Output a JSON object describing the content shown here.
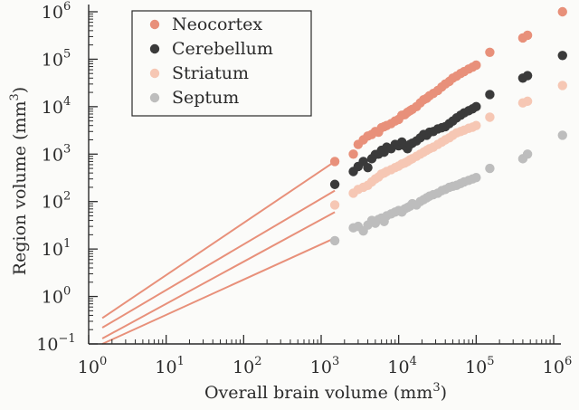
{
  "chart_data": {
    "type": "scatter",
    "xlabel": "Overall brain volume (mm",
    "xlabel_sup": "3",
    "xlabel_end": ")",
    "ylabel": "Region volume (mm",
    "ylabel_sup": "3",
    "ylabel_end": ")",
    "x_scale": "log",
    "y_scale": "log",
    "xlim": [
      1,
      1000000
    ],
    "ylim": [
      0.1,
      1000000
    ],
    "x_ticks": [
      {
        "base": "10",
        "exp": "0",
        "value": 1
      },
      {
        "base": "10",
        "exp": "1",
        "value": 10
      },
      {
        "base": "10",
        "exp": "2",
        "value": 100
      },
      {
        "base": "10",
        "exp": "3",
        "value": 1000
      },
      {
        "base": "10",
        "exp": "4",
        "value": 10000
      },
      {
        "base": "10",
        "exp": "5",
        "value": 100000
      },
      {
        "base": "10",
        "exp": "6",
        "value": 1000000
      }
    ],
    "y_ticks": [
      {
        "base": "10",
        "exp": "−1",
        "value": 0.1
      },
      {
        "base": "10",
        "exp": "0",
        "value": 1
      },
      {
        "base": "10",
        "exp": "1",
        "value": 10
      },
      {
        "base": "10",
        "exp": "2",
        "value": 100
      },
      {
        "base": "10",
        "exp": "3",
        "value": 1000
      },
      {
        "base": "10",
        "exp": "4",
        "value": 10000
      },
      {
        "base": "10",
        "exp": "5",
        "value": 100000
      },
      {
        "base": "10",
        "exp": "6",
        "value": 1000000
      }
    ],
    "grid": false,
    "legend_position": "top-left",
    "fit_x_range": [
      1.5,
      1500
    ],
    "series": [
      {
        "name": "Neocortex",
        "color": "#e8907a",
        "fit_color": "#e8907a",
        "points": [
          [
            1500,
            700
          ],
          [
            2600,
            1000
          ],
          [
            3000,
            1600
          ],
          [
            3500,
            2000
          ],
          [
            4000,
            2400
          ],
          [
            4500,
            2600
          ],
          [
            5000,
            3000
          ],
          [
            5500,
            2900
          ],
          [
            6000,
            3600
          ],
          [
            6500,
            3800
          ],
          [
            7000,
            4000
          ],
          [
            8000,
            4400
          ],
          [
            9000,
            5000
          ],
          [
            10000,
            5400
          ],
          [
            11000,
            6600
          ],
          [
            12000,
            6800
          ],
          [
            13000,
            7600
          ],
          [
            14000,
            8200
          ],
          [
            15000,
            8800
          ],
          [
            17000,
            10000
          ],
          [
            19000,
            12000
          ],
          [
            21000,
            14000
          ],
          [
            23000,
            15000
          ],
          [
            25000,
            17000
          ],
          [
            28000,
            19000
          ],
          [
            32000,
            22000
          ],
          [
            36000,
            26000
          ],
          [
            40000,
            30000
          ],
          [
            45000,
            34000
          ],
          [
            50000,
            40000
          ],
          [
            56000,
            44000
          ],
          [
            63000,
            50000
          ],
          [
            70000,
            55000
          ],
          [
            80000,
            62000
          ],
          [
            90000,
            68000
          ],
          [
            100000,
            75000
          ],
          [
            150000,
            140000
          ],
          [
            400000,
            280000
          ],
          [
            460000,
            320000
          ],
          [
            1300000,
            1000000
          ]
        ]
      },
      {
        "name": "Cerebellum",
        "color": "#3a3a3a",
        "fit_color": "#e8907a",
        "points": [
          [
            1500,
            230
          ],
          [
            2600,
            430
          ],
          [
            3000,
            550
          ],
          [
            3500,
            700
          ],
          [
            4000,
            520
          ],
          [
            4500,
            800
          ],
          [
            5000,
            980
          ],
          [
            5500,
            1000
          ],
          [
            6000,
            1200
          ],
          [
            6500,
            1100
          ],
          [
            7000,
            1400
          ],
          [
            8000,
            1300
          ],
          [
            9000,
            1600
          ],
          [
            10000,
            1500
          ],
          [
            11000,
            1800
          ],
          [
            12000,
            1500
          ],
          [
            13000,
            1300
          ],
          [
            14000,
            1600
          ],
          [
            15000,
            1700
          ],
          [
            17000,
            1900
          ],
          [
            19000,
            2200
          ],
          [
            21000,
            2600
          ],
          [
            23000,
            2500
          ],
          [
            25000,
            2900
          ],
          [
            28000,
            3000
          ],
          [
            32000,
            3400
          ],
          [
            36000,
            3600
          ],
          [
            40000,
            3800
          ],
          [
            45000,
            4400
          ],
          [
            50000,
            5000
          ],
          [
            56000,
            5800
          ],
          [
            63000,
            6600
          ],
          [
            70000,
            7400
          ],
          [
            80000,
            8200
          ],
          [
            90000,
            9000
          ],
          [
            100000,
            10000
          ],
          [
            150000,
            18000
          ],
          [
            400000,
            40000
          ],
          [
            460000,
            45000
          ],
          [
            1300000,
            120000
          ]
        ]
      },
      {
        "name": "Striatum",
        "color": "#f6c7b4",
        "fit_color": "#e8907a",
        "points": [
          [
            1500,
            85
          ],
          [
            2600,
            150
          ],
          [
            3000,
            180
          ],
          [
            3500,
            200
          ],
          [
            4000,
            220
          ],
          [
            4500,
            260
          ],
          [
            5000,
            300
          ],
          [
            5500,
            330
          ],
          [
            6000,
            380
          ],
          [
            6500,
            400
          ],
          [
            7000,
            430
          ],
          [
            8000,
            470
          ],
          [
            9000,
            520
          ],
          [
            10000,
            560
          ],
          [
            11000,
            620
          ],
          [
            12000,
            650
          ],
          [
            13000,
            700
          ],
          [
            14000,
            760
          ],
          [
            15000,
            800
          ],
          [
            17000,
            900
          ],
          [
            19000,
            1000
          ],
          [
            21000,
            1100
          ],
          [
            23000,
            1200
          ],
          [
            25000,
            1300
          ],
          [
            28000,
            1400
          ],
          [
            32000,
            1600
          ],
          [
            36000,
            1800
          ],
          [
            40000,
            2000
          ],
          [
            45000,
            2200
          ],
          [
            50000,
            2500
          ],
          [
            56000,
            2800
          ],
          [
            63000,
            3000
          ],
          [
            70000,
            3200
          ],
          [
            80000,
            3500
          ],
          [
            90000,
            3700
          ],
          [
            100000,
            4000
          ],
          [
            150000,
            6000
          ],
          [
            400000,
            12000
          ],
          [
            460000,
            13000
          ],
          [
            1300000,
            28000
          ]
        ]
      },
      {
        "name": "Septum",
        "color": "#bdbdbd",
        "fit_color": "#e8907a",
        "points": [
          [
            1500,
            15
          ],
          [
            2600,
            28
          ],
          [
            3000,
            30
          ],
          [
            3500,
            24
          ],
          [
            4000,
            32
          ],
          [
            4500,
            40
          ],
          [
            5000,
            35
          ],
          [
            5500,
            42
          ],
          [
            6000,
            45
          ],
          [
            6500,
            38
          ],
          [
            7000,
            50
          ],
          [
            8000,
            55
          ],
          [
            9000,
            60
          ],
          [
            10000,
            65
          ],
          [
            11000,
            60
          ],
          [
            12000,
            70
          ],
          [
            13000,
            75
          ],
          [
            14000,
            80
          ],
          [
            15000,
            90
          ],
          [
            17000,
            85
          ],
          [
            19000,
            100
          ],
          [
            21000,
            110
          ],
          [
            23000,
            120
          ],
          [
            25000,
            130
          ],
          [
            28000,
            140
          ],
          [
            32000,
            150
          ],
          [
            36000,
            170
          ],
          [
            40000,
            180
          ],
          [
            45000,
            200
          ],
          [
            50000,
            210
          ],
          [
            56000,
            220
          ],
          [
            63000,
            240
          ],
          [
            70000,
            260
          ],
          [
            80000,
            280
          ],
          [
            90000,
            300
          ],
          [
            100000,
            320
          ],
          [
            150000,
            500
          ],
          [
            400000,
            800
          ],
          [
            460000,
            1000
          ],
          [
            1300000,
            2500
          ]
        ]
      }
    ],
    "fit_lines": [
      {
        "series": "Neocortex",
        "start": [
          1.5,
          0.35
        ],
        "end": [
          1500,
          700
        ]
      },
      {
        "series": "Cerebellum",
        "start": [
          1.5,
          0.22
        ],
        "end": [
          1500,
          170
        ]
      },
      {
        "series": "Striatum",
        "start": [
          1.5,
          0.13
        ],
        "end": [
          1500,
          60
        ]
      },
      {
        "series": "Septum",
        "start": [
          1.5,
          0.1
        ],
        "end": [
          1500,
          17
        ]
      }
    ]
  }
}
